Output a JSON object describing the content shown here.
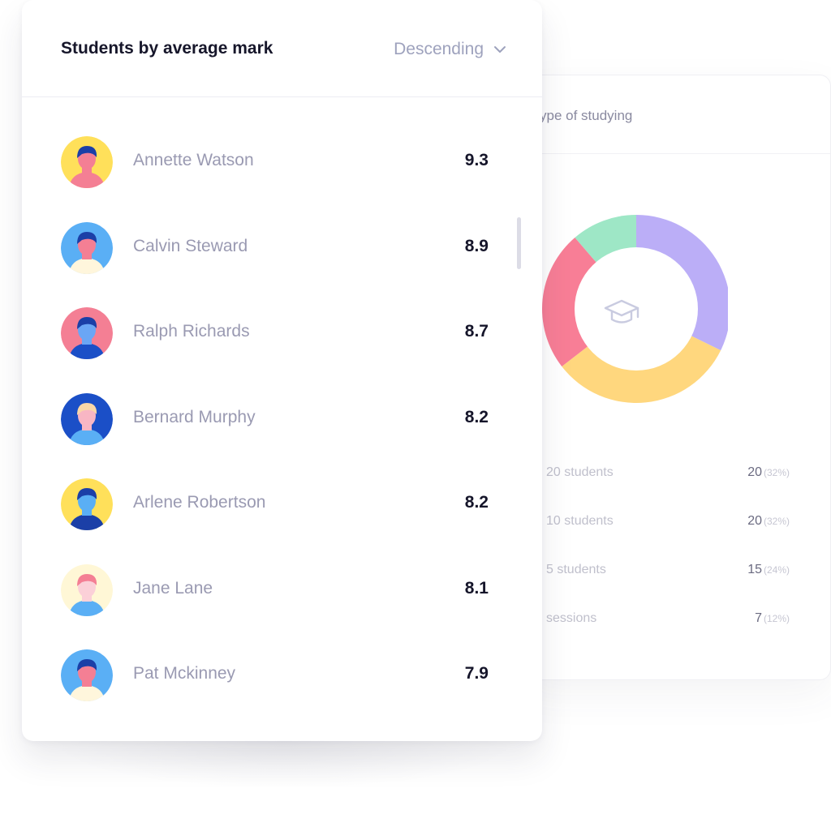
{
  "back_card": {
    "title": "ype of studying",
    "chart_data": {
      "type": "pie",
      "categories": [
        "20 students",
        "10 students",
        "5 students",
        "sessions"
      ],
      "values": [
        20,
        20,
        15,
        7
      ],
      "percents": [
        "32%",
        "32%",
        "24%",
        "12%"
      ],
      "colors": [
        "#bbaef7",
        "#ffd77e",
        "#f87e96",
        "#9ee7c6"
      ]
    },
    "legend": [
      {
        "label": "20 students",
        "value": "20",
        "pct": "(32%)"
      },
      {
        "label": "10 students",
        "value": "20",
        "pct": "(32%)"
      },
      {
        "label": "5 students",
        "value": "15",
        "pct": "(24%)"
      },
      {
        "label": "sessions",
        "value": "7",
        "pct": "(12%)"
      }
    ]
  },
  "front_card": {
    "title": "Students by average mark",
    "sort": {
      "label": "Descending"
    },
    "students": [
      {
        "name": "Annette Watson",
        "mark": "9.3",
        "bg": "#ffe05a",
        "skin": "#f47f94",
        "hair": "#1b3fa7",
        "shirt": "#f47f94"
      },
      {
        "name": "Calvin Steward",
        "mark": "8.9",
        "bg": "#5aaff5",
        "skin": "#f47f94",
        "hair": "#1b3fa7",
        "shirt": "#fff6dc"
      },
      {
        "name": "Ralph Richards",
        "mark": "8.7",
        "bg": "#f47f94",
        "skin": "#6aa6f5",
        "hair": "#1b3fa7",
        "shirt": "#1b4fc7"
      },
      {
        "name": "Bernard Murphy",
        "mark": "8.2",
        "bg": "#1b4fc7",
        "skin": "#f8b6c4",
        "hair": "#f9d7a7",
        "shirt": "#5aaff5"
      },
      {
        "name": "Arlene Robertson",
        "mark": "8.2",
        "bg": "#ffe05a",
        "skin": "#5aaff5",
        "hair": "#1b3fa7",
        "shirt": "#1b3fa7"
      },
      {
        "name": "Jane Lane",
        "mark": "8.1",
        "bg": "#fff7d6",
        "skin": "#fbd0d8",
        "hair": "#f47f94",
        "shirt": "#5aaff5"
      },
      {
        "name": "Pat Mckinney",
        "mark": "7.9",
        "bg": "#5aaff5",
        "skin": "#f47f94",
        "hair": "#1b3fa7",
        "shirt": "#fff6dc"
      }
    ]
  }
}
